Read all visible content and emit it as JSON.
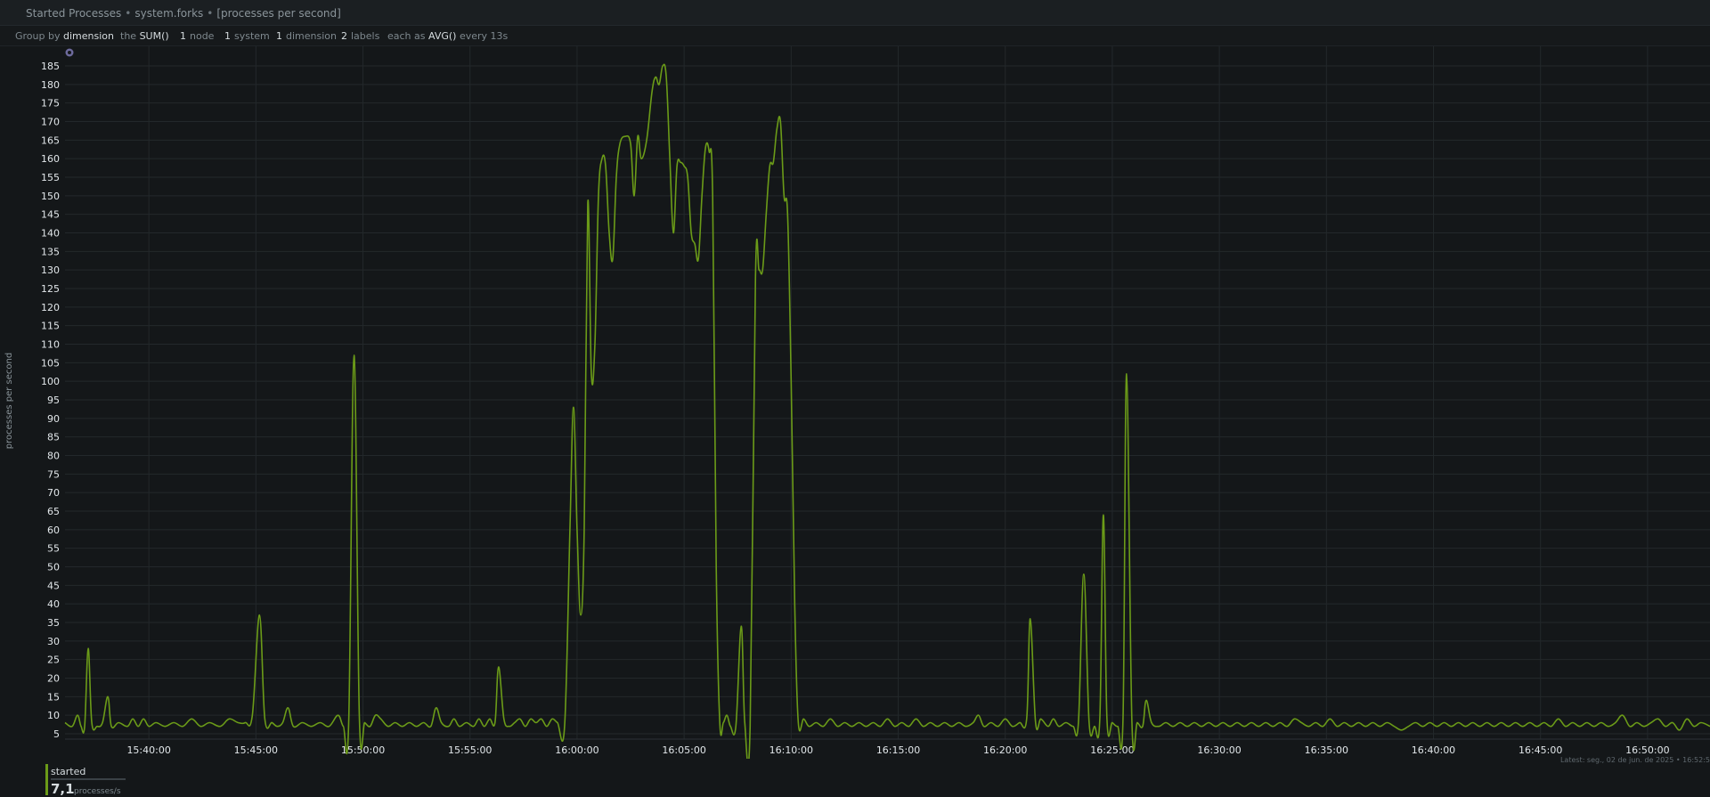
{
  "header": {
    "chart_title": "Started Processes",
    "context": "system.forks",
    "units": "[processes per second]",
    "separator": "•"
  },
  "groupbar": {
    "group_by_label": "Group by",
    "group_by_value": "dimension",
    "agg_prefix": "the",
    "agg_value": "SUM()",
    "nodes_count": "1",
    "nodes_label": "node",
    "systems_count": "1",
    "systems_label": "system",
    "dimensions_count": "1",
    "dimensions_label": "dimension",
    "labels_count": "2",
    "labels_label": "labels",
    "time_agg_prefix": "each as",
    "time_agg_value": "AVG()",
    "time_agg_suffix": "every 13s"
  },
  "legend": {
    "name": "started",
    "value": "7,1",
    "unit": "processes/s",
    "color": "#6b9b18"
  },
  "footer": {
    "latest": "Latest: seg., 02 de jun. de 2025 • 16:52:5"
  },
  "colors": {
    "line": "#6b9b18",
    "background": "#141719",
    "grid": "#23282b"
  },
  "chart_data": {
    "type": "line",
    "title": "Started Processes",
    "ylabel": "processes per second",
    "xlabel": "",
    "grid": true,
    "ylim": [
      3,
      188
    ],
    "xlim": [
      "15:36:05",
      "16:52:55"
    ],
    "yticks": [
      5,
      10,
      15,
      20,
      25,
      30,
      35,
      40,
      45,
      50,
      55,
      60,
      65,
      70,
      75,
      80,
      85,
      90,
      95,
      100,
      105,
      110,
      115,
      120,
      125,
      130,
      135,
      140,
      145,
      150,
      155,
      160,
      165,
      170,
      175,
      180,
      185
    ],
    "xticks": [
      "15:40:00",
      "15:45:00",
      "15:50:00",
      "15:55:00",
      "16:00:00",
      "16:05:00",
      "16:10:00",
      "16:15:00",
      "16:20:00",
      "16:25:00",
      "16:30:00",
      "16:35:00",
      "16:40:00",
      "16:45:00",
      "16:50:00"
    ],
    "series": [
      {
        "name": "started",
        "color": "#6b9b18",
        "points": [
          [
            "15:36:05",
            8
          ],
          [
            "15:36:25",
            7
          ],
          [
            "15:36:40",
            10
          ],
          [
            "15:36:50",
            7
          ],
          [
            "15:37:00",
            7
          ],
          [
            "15:37:10",
            28
          ],
          [
            "15:37:20",
            8
          ],
          [
            "15:37:35",
            7
          ],
          [
            "15:37:50",
            8
          ],
          [
            "15:38:05",
            15
          ],
          [
            "15:38:15",
            7
          ],
          [
            "15:38:35",
            8
          ],
          [
            "15:39:00",
            7
          ],
          [
            "15:39:15",
            9
          ],
          [
            "15:39:30",
            7
          ],
          [
            "15:39:45",
            9
          ],
          [
            "15:40:00",
            7
          ],
          [
            "15:40:20",
            8
          ],
          [
            "15:40:45",
            7
          ],
          [
            "15:41:10",
            8
          ],
          [
            "15:41:35",
            7
          ],
          [
            "15:42:00",
            9
          ],
          [
            "15:42:25",
            7
          ],
          [
            "15:42:50",
            8
          ],
          [
            "15:43:20",
            7
          ],
          [
            "15:43:45",
            9
          ],
          [
            "15:44:10",
            8
          ],
          [
            "15:44:30",
            8
          ],
          [
            "15:44:50",
            10
          ],
          [
            "15:45:10",
            37
          ],
          [
            "15:45:25",
            9
          ],
          [
            "15:45:45",
            8
          ],
          [
            "15:46:00",
            7
          ],
          [
            "15:46:15",
            8
          ],
          [
            "15:46:30",
            12
          ],
          [
            "15:46:45",
            7
          ],
          [
            "15:47:10",
            8
          ],
          [
            "15:47:35",
            7
          ],
          [
            "15:48:00",
            8
          ],
          [
            "15:48:25",
            7
          ],
          [
            "15:48:50",
            10
          ],
          [
            "15:49:05",
            7
          ],
          [
            "15:49:20",
            8
          ],
          [
            "15:49:35",
            107
          ],
          [
            "15:49:50",
            9
          ],
          [
            "15:50:05",
            8
          ],
          [
            "15:50:20",
            7
          ],
          [
            "15:50:35",
            10
          ],
          [
            "15:50:50",
            9
          ],
          [
            "15:51:10",
            7
          ],
          [
            "15:51:30",
            8
          ],
          [
            "15:51:50",
            7
          ],
          [
            "15:52:10",
            8
          ],
          [
            "15:52:30",
            7
          ],
          [
            "15:52:50",
            8
          ],
          [
            "15:53:10",
            7
          ],
          [
            "15:53:25",
            12
          ],
          [
            "15:53:40",
            8
          ],
          [
            "15:54:00",
            7
          ],
          [
            "15:54:15",
            9
          ],
          [
            "15:54:30",
            7
          ],
          [
            "15:54:50",
            8
          ],
          [
            "15:55:10",
            7
          ],
          [
            "15:55:25",
            9
          ],
          [
            "15:55:40",
            7
          ],
          [
            "15:55:55",
            9
          ],
          [
            "15:56:10",
            8
          ],
          [
            "15:56:20",
            23
          ],
          [
            "15:56:35",
            9
          ],
          [
            "15:56:50",
            7
          ],
          [
            "15:57:05",
            8
          ],
          [
            "15:57:20",
            9
          ],
          [
            "15:57:35",
            7
          ],
          [
            "15:57:50",
            9
          ],
          [
            "15:58:05",
            8
          ],
          [
            "15:58:20",
            9
          ],
          [
            "15:58:35",
            7
          ],
          [
            "15:58:50",
            9
          ],
          [
            "15:59:05",
            8
          ],
          [
            "15:59:25",
            7
          ],
          [
            "15:59:40",
            60
          ],
          [
            "15:59:50",
            93
          ],
          [
            "16:00:00",
            60
          ],
          [
            "16:00:10",
            37
          ],
          [
            "16:00:20",
            60
          ],
          [
            "16:00:30",
            148
          ],
          [
            "16:00:40",
            102
          ],
          [
            "16:00:50",
            110
          ],
          [
            "16:01:00",
            150
          ],
          [
            "16:01:10",
            160
          ],
          [
            "16:01:20",
            158
          ],
          [
            "16:01:30",
            140
          ],
          [
            "16:01:40",
            133
          ],
          [
            "16:01:50",
            155
          ],
          [
            "16:02:00",
            164
          ],
          [
            "16:02:15",
            166
          ],
          [
            "16:02:30",
            164
          ],
          [
            "16:02:40",
            150
          ],
          [
            "16:02:50",
            166
          ],
          [
            "16:03:00",
            160
          ],
          [
            "16:03:15",
            165
          ],
          [
            "16:03:30",
            178
          ],
          [
            "16:03:40",
            182
          ],
          [
            "16:03:50",
            180
          ],
          [
            "16:04:00",
            185
          ],
          [
            "16:04:10",
            182
          ],
          [
            "16:04:20",
            160
          ],
          [
            "16:04:30",
            140
          ],
          [
            "16:04:40",
            158
          ],
          [
            "16:04:50",
            159
          ],
          [
            "16:05:00",
            158
          ],
          [
            "16:05:10",
            155
          ],
          [
            "16:05:20",
            140
          ],
          [
            "16:05:30",
            137
          ],
          [
            "16:05:40",
            133
          ],
          [
            "16:05:50",
            150
          ],
          [
            "16:06:00",
            163
          ],
          [
            "16:06:10",
            162
          ],
          [
            "16:06:20",
            150
          ],
          [
            "16:06:30",
            50
          ],
          [
            "16:06:40",
            8
          ],
          [
            "16:06:50",
            8
          ],
          [
            "16:07:00",
            10
          ],
          [
            "16:07:10",
            7
          ],
          [
            "16:07:25",
            7
          ],
          [
            "16:07:40",
            34
          ],
          [
            "16:07:50",
            8
          ],
          [
            "16:08:05",
            7
          ],
          [
            "16:08:20",
            128
          ],
          [
            "16:08:30",
            130
          ],
          [
            "16:08:40",
            130
          ],
          [
            "16:08:50",
            145
          ],
          [
            "16:09:00",
            158
          ],
          [
            "16:09:10",
            159
          ],
          [
            "16:09:20",
            168
          ],
          [
            "16:09:30",
            170
          ],
          [
            "16:09:40",
            150
          ],
          [
            "16:09:50",
            145
          ],
          [
            "16:10:00",
            100
          ],
          [
            "16:10:10",
            40
          ],
          [
            "16:10:20",
            8
          ],
          [
            "16:10:35",
            9
          ],
          [
            "16:10:50",
            7
          ],
          [
            "16:11:10",
            8
          ],
          [
            "16:11:30",
            7
          ],
          [
            "16:11:50",
            9
          ],
          [
            "16:12:10",
            7
          ],
          [
            "16:12:30",
            8
          ],
          [
            "16:12:50",
            7
          ],
          [
            "16:13:10",
            8
          ],
          [
            "16:13:30",
            7
          ],
          [
            "16:13:50",
            8
          ],
          [
            "16:14:10",
            7
          ],
          [
            "16:14:30",
            9
          ],
          [
            "16:14:50",
            7
          ],
          [
            "16:15:10",
            8
          ],
          [
            "16:15:30",
            7
          ],
          [
            "16:15:50",
            9
          ],
          [
            "16:16:10",
            7
          ],
          [
            "16:16:30",
            8
          ],
          [
            "16:16:50",
            7
          ],
          [
            "16:17:10",
            8
          ],
          [
            "16:17:30",
            7
          ],
          [
            "16:17:50",
            8
          ],
          [
            "16:18:10",
            7
          ],
          [
            "16:18:30",
            8
          ],
          [
            "16:18:45",
            10
          ],
          [
            "16:19:00",
            7
          ],
          [
            "16:19:20",
            8
          ],
          [
            "16:19:40",
            7
          ],
          [
            "16:20:00",
            9
          ],
          [
            "16:20:20",
            7
          ],
          [
            "16:20:40",
            8
          ],
          [
            "16:21:00",
            9
          ],
          [
            "16:21:10",
            36
          ],
          [
            "16:21:25",
            8
          ],
          [
            "16:21:40",
            9
          ],
          [
            "16:22:00",
            7
          ],
          [
            "16:22:15",
            9
          ],
          [
            "16:22:30",
            7
          ],
          [
            "16:22:50",
            8
          ],
          [
            "16:23:10",
            7
          ],
          [
            "16:23:25",
            8
          ],
          [
            "16:23:40",
            48
          ],
          [
            "16:23:55",
            8
          ],
          [
            "16:24:10",
            7
          ],
          [
            "16:24:25",
            9
          ],
          [
            "16:24:35",
            64
          ],
          [
            "16:24:45",
            9
          ],
          [
            "16:25:00",
            8
          ],
          [
            "16:25:15",
            7
          ],
          [
            "16:25:30",
            9
          ],
          [
            "16:25:40",
            102
          ],
          [
            "16:25:55",
            8
          ],
          [
            "16:26:10",
            8
          ],
          [
            "16:26:25",
            7
          ],
          [
            "16:26:35",
            14
          ],
          [
            "16:26:50",
            8
          ],
          [
            "16:27:10",
            7
          ],
          [
            "16:27:30",
            8
          ],
          [
            "16:27:50",
            7
          ],
          [
            "16:28:10",
            8
          ],
          [
            "16:28:30",
            7
          ],
          [
            "16:28:50",
            8
          ],
          [
            "16:29:10",
            7
          ],
          [
            "16:29:30",
            8
          ],
          [
            "16:29:50",
            7
          ],
          [
            "16:30:10",
            8
          ],
          [
            "16:30:30",
            7
          ],
          [
            "16:30:50",
            8
          ],
          [
            "16:31:10",
            7
          ],
          [
            "16:31:30",
            8
          ],
          [
            "16:31:50",
            7
          ],
          [
            "16:32:10",
            8
          ],
          [
            "16:32:30",
            7
          ],
          [
            "16:32:50",
            8
          ],
          [
            "16:33:10",
            7
          ],
          [
            "16:33:30",
            9
          ],
          [
            "16:33:50",
            8
          ],
          [
            "16:34:10",
            7
          ],
          [
            "16:34:30",
            8
          ],
          [
            "16:34:50",
            7
          ],
          [
            "16:35:10",
            9
          ],
          [
            "16:35:30",
            7
          ],
          [
            "16:35:50",
            8
          ],
          [
            "16:36:10",
            7
          ],
          [
            "16:36:30",
            8
          ],
          [
            "16:36:50",
            7
          ],
          [
            "16:37:10",
            8
          ],
          [
            "16:37:30",
            7
          ],
          [
            "16:37:50",
            8
          ],
          [
            "16:38:10",
            7
          ],
          [
            "16:38:30",
            6
          ],
          [
            "16:38:50",
            7
          ],
          [
            "16:39:10",
            8
          ],
          [
            "16:39:30",
            7
          ],
          [
            "16:39:50",
            8
          ],
          [
            "16:40:10",
            7
          ],
          [
            "16:40:30",
            8
          ],
          [
            "16:40:50",
            7
          ],
          [
            "16:41:10",
            8
          ],
          [
            "16:41:30",
            7
          ],
          [
            "16:41:50",
            8
          ],
          [
            "16:42:10",
            7
          ],
          [
            "16:42:30",
            8
          ],
          [
            "16:42:50",
            7
          ],
          [
            "16:43:10",
            8
          ],
          [
            "16:43:30",
            7
          ],
          [
            "16:43:50",
            8
          ],
          [
            "16:44:10",
            7
          ],
          [
            "16:44:30",
            8
          ],
          [
            "16:44:50",
            7
          ],
          [
            "16:45:10",
            8
          ],
          [
            "16:45:30",
            7
          ],
          [
            "16:45:50",
            9
          ],
          [
            "16:46:10",
            7
          ],
          [
            "16:46:30",
            8
          ],
          [
            "16:46:50",
            7
          ],
          [
            "16:47:10",
            8
          ],
          [
            "16:47:30",
            7
          ],
          [
            "16:47:50",
            8
          ],
          [
            "16:48:10",
            7
          ],
          [
            "16:48:30",
            8
          ],
          [
            "16:48:50",
            10
          ],
          [
            "16:49:10",
            7
          ],
          [
            "16:49:30",
            8
          ],
          [
            "16:49:50",
            7
          ],
          [
            "16:50:10",
            8
          ],
          [
            "16:50:30",
            9
          ],
          [
            "16:50:50",
            7
          ],
          [
            "16:51:10",
            8
          ],
          [
            "16:51:30",
            6
          ],
          [
            "16:51:50",
            9
          ],
          [
            "16:52:10",
            7
          ],
          [
            "16:52:30",
            8
          ],
          [
            "16:52:55",
            7
          ]
        ]
      }
    ]
  }
}
